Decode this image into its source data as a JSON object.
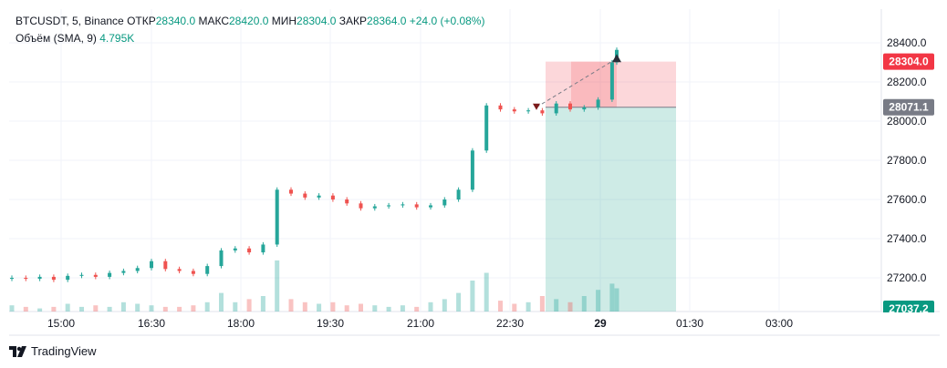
{
  "legend": {
    "symbol": "BTCUSDT, 5, Binance",
    "open_label": "ОТКР",
    "open": "28340.0",
    "high_label": "МАКС",
    "high": "28420.0",
    "low_label": "МИН",
    "low": "28304.0",
    "close_label": "ЗАКР",
    "close": "28364.0",
    "change": "+24.0 (+0.08%)",
    "volume_label": "Объём (SMA, 9)",
    "volume_value": "4.795K"
  },
  "branding": {
    "name": "TradingView",
    "logo": "tradingview-logo-icon"
  },
  "colors": {
    "up": "#26a69a",
    "down": "#ef5350",
    "grid": "#f0f3fa",
    "stop": "#f23645",
    "entry": "#787b86",
    "target": "#089981"
  },
  "chart_data": {
    "type": "candlestick",
    "y_ticks": [
      "28400.0",
      "28200.0",
      "28000.0",
      "27800.0",
      "27600.0",
      "27400.0",
      "27200.0"
    ],
    "x_ticks": [
      "15:00",
      "16:30",
      "18:00",
      "19:30",
      "21:00",
      "22:30",
      "29",
      "01:30",
      "03:00"
    ],
    "price_labels": {
      "stop": "28304.0",
      "entry": "28071.1",
      "target": "27037.2"
    },
    "grid": true,
    "ohlc_anchor_price": [
      28400,
      27200
    ],
    "series": [
      {
        "t": 0,
        "c": 27200
      },
      {
        "t": 6,
        "c": 27195
      },
      {
        "t": 12,
        "c": 27205
      },
      {
        "t": 18,
        "c": 27190
      },
      {
        "t": 24,
        "c": 27210
      },
      {
        "t": 30,
        "c": 27215
      },
      {
        "t": 36,
        "c": 27205
      },
      {
        "t": 42,
        "c": 27225
      },
      {
        "t": 48,
        "c": 27235
      },
      {
        "t": 54,
        "c": 27250
      },
      {
        "t": 60,
        "c": 27285
      },
      {
        "t": 66,
        "c": 27245
      },
      {
        "t": 72,
        "c": 27235
      },
      {
        "t": 78,
        "c": 27220
      },
      {
        "t": 84,
        "c": 27260
      },
      {
        "t": 90,
        "c": 27340
      },
      {
        "t": 96,
        "c": 27350
      },
      {
        "t": 102,
        "c": 27330
      },
      {
        "t": 108,
        "c": 27370
      },
      {
        "t": 114,
        "c": 27650
      },
      {
        "t": 120,
        "c": 27630
      },
      {
        "t": 126,
        "c": 27610
      },
      {
        "t": 132,
        "c": 27620
      },
      {
        "t": 138,
        "c": 27600
      },
      {
        "t": 144,
        "c": 27580
      },
      {
        "t": 150,
        "c": 27555
      },
      {
        "t": 156,
        "c": 27565
      },
      {
        "t": 162,
        "c": 27570
      },
      {
        "t": 168,
        "c": 27575
      },
      {
        "t": 174,
        "c": 27560
      },
      {
        "t": 180,
        "c": 27570
      },
      {
        "t": 186,
        "c": 27600
      },
      {
        "t": 192,
        "c": 27650
      },
      {
        "t": 198,
        "c": 27850
      },
      {
        "t": 204,
        "c": 28080
      },
      {
        "t": 210,
        "c": 28060
      },
      {
        "t": 216,
        "c": 28050
      },
      {
        "t": 222,
        "c": 28055
      },
      {
        "t": 228,
        "c": 28040
      },
      {
        "t": 234,
        "c": 28090
      },
      {
        "t": 240,
        "c": 28060
      },
      {
        "t": 246,
        "c": 28070
      },
      {
        "t": 252,
        "c": 28110
      },
      {
        "t": 258,
        "c": 28300
      },
      {
        "t": 260,
        "c": 28364
      }
    ],
    "volume": [
      {
        "t": 0,
        "v": 4
      },
      {
        "t": 6,
        "v": 3
      },
      {
        "t": 12,
        "v": 2
      },
      {
        "t": 18,
        "v": 3
      },
      {
        "t": 24,
        "v": 5
      },
      {
        "t": 30,
        "v": 3
      },
      {
        "t": 36,
        "v": 4
      },
      {
        "t": 42,
        "v": 3
      },
      {
        "t": 48,
        "v": 6
      },
      {
        "t": 54,
        "v": 5
      },
      {
        "t": 60,
        "v": 4
      },
      {
        "t": 66,
        "v": 3
      },
      {
        "t": 72,
        "v": 3
      },
      {
        "t": 78,
        "v": 4
      },
      {
        "t": 84,
        "v": 6
      },
      {
        "t": 90,
        "v": 12
      },
      {
        "t": 96,
        "v": 6
      },
      {
        "t": 102,
        "v": 8
      },
      {
        "t": 108,
        "v": 10
      },
      {
        "t": 114,
        "v": 33
      },
      {
        "t": 120,
        "v": 8
      },
      {
        "t": 126,
        "v": 6
      },
      {
        "t": 132,
        "v": 5
      },
      {
        "t": 138,
        "v": 6
      },
      {
        "t": 144,
        "v": 4
      },
      {
        "t": 150,
        "v": 5
      },
      {
        "t": 156,
        "v": 4
      },
      {
        "t": 162,
        "v": 3
      },
      {
        "t": 168,
        "v": 4
      },
      {
        "t": 174,
        "v": 3
      },
      {
        "t": 180,
        "v": 6
      },
      {
        "t": 186,
        "v": 8
      },
      {
        "t": 192,
        "v": 12
      },
      {
        "t": 198,
        "v": 20
      },
      {
        "t": 204,
        "v": 25
      },
      {
        "t": 210,
        "v": 7
      },
      {
        "t": 216,
        "v": 5
      },
      {
        "t": 222,
        "v": 6
      },
      {
        "t": 228,
        "v": 10
      },
      {
        "t": 234,
        "v": 8
      },
      {
        "t": 240,
        "v": 6
      },
      {
        "t": 246,
        "v": 10
      },
      {
        "t": 252,
        "v": 14
      },
      {
        "t": 258,
        "v": 18
      },
      {
        "t": 260,
        "v": 15
      }
    ]
  }
}
